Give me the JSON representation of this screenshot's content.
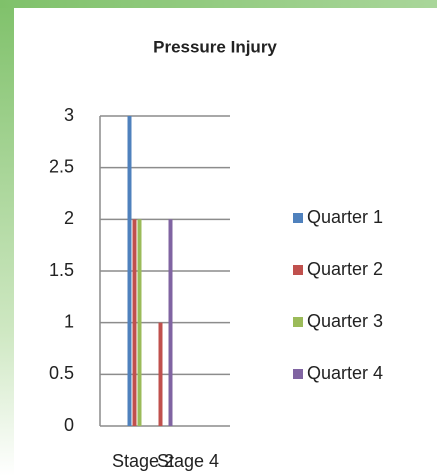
{
  "chart_data": {
    "type": "bar",
    "title": "Pressure Injury",
    "categories": [
      "Stage 2",
      "Stage 4"
    ],
    "series": [
      {
        "name": "Quarter 1",
        "color": "#4f81bd",
        "values": [
          3,
          0
        ]
      },
      {
        "name": "Quarter 2",
        "color": "#c0504d",
        "values": [
          2,
          1
        ]
      },
      {
        "name": "Quarter 3",
        "color": "#9bbb59",
        "values": [
          2,
          0
        ]
      },
      {
        "name": "Quarter 4",
        "color": "#8064a2",
        "values": [
          0,
          2
        ]
      }
    ],
    "ylim": [
      0,
      3
    ],
    "yticks": [
      0,
      0.5,
      1,
      1.5,
      2,
      2.5,
      3
    ],
    "grid": true,
    "legend": "right"
  }
}
